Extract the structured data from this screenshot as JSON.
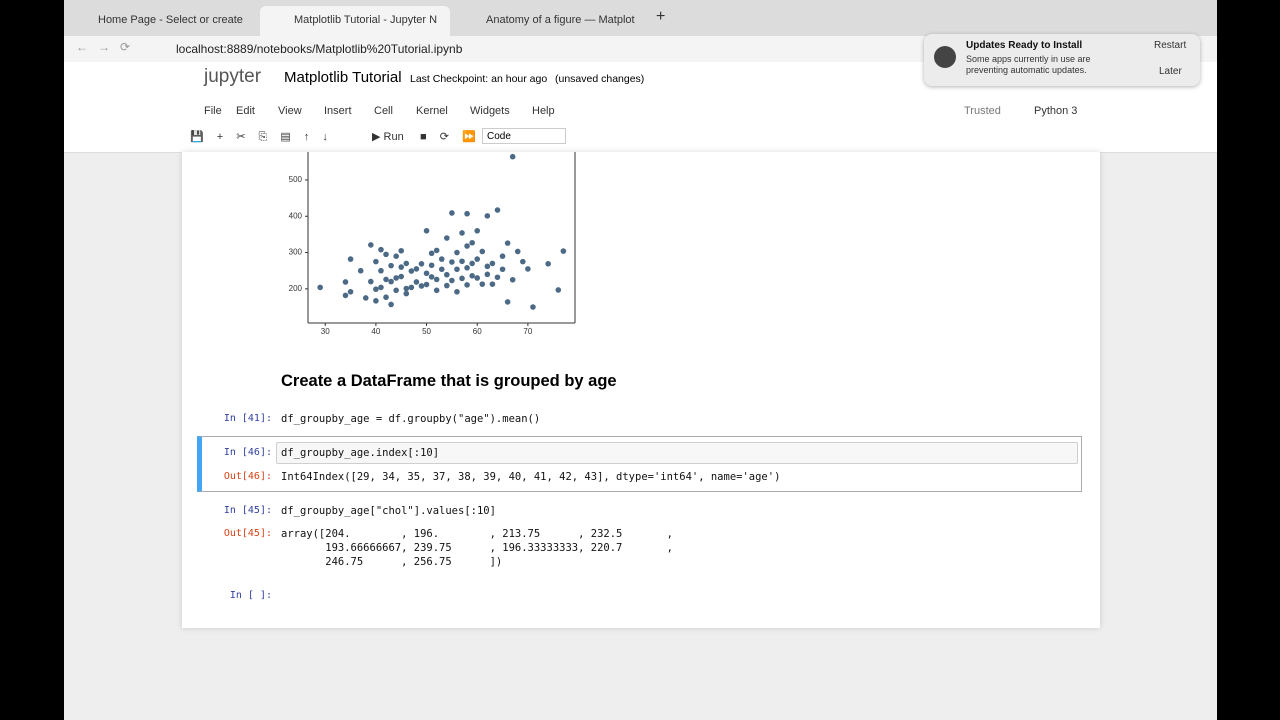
{
  "browser": {
    "tabs": [
      "Home Page - Select or create",
      "Matplotlib Tutorial - Jupyter N",
      "Anatomy of a figure — Matplot"
    ],
    "url": "localhost:8889/notebooks/Matplotlib%20Tutorial.ipynb"
  },
  "notification": {
    "title": "Updates Ready to Install",
    "body": [
      "Some apps currently in use are",
      "preventing automatic updates."
    ],
    "buttons": [
      "Restart",
      "Later"
    ]
  },
  "notebook": {
    "logo": "jupyter",
    "name": "Matplotlib Tutorial",
    "checkpoint": "Last Checkpoint: an hour ago",
    "status": "(unsaved changes)",
    "menu": [
      "File",
      "Edit",
      "View",
      "Insert",
      "Cell",
      "Kernel",
      "Widgets",
      "Help"
    ],
    "trusted": "Trusted",
    "kernel": "Python 3",
    "run": "Run",
    "cell_type": "Code",
    "heading": "Create a DataFrame that is grouped by age"
  },
  "cells": [
    {
      "prompt": "In [41]:",
      "code": "df_groupby_age = df.groupby(\"age\").mean()"
    },
    {
      "prompt": "In [46]:",
      "code": "df_groupby_age.index[:10]",
      "out_prompt": "Out[46]:",
      "output": [
        "Int64Index([29, 34, 35, 37, 38, 39, 40, 41, 42, 43], dtype='int64', name='age')"
      ]
    },
    {
      "prompt": "In [45]:",
      "code": "df_groupby_age[\"chol\"].values[:10]",
      "out_prompt": "Out[45]:",
      "output": [
        "array([204.        , 196.        , 213.75      , 232.5       ,",
        "       193.66666667, 239.75      , 196.33333333, 220.7       ,",
        "       246.75      , 256.75      ])"
      ]
    },
    {
      "prompt": "In [ ]:"
    }
  ],
  "chart_data": {
    "type": "scatter",
    "color": "#4c6a86",
    "x": [
      29,
      34,
      34,
      35,
      35,
      37,
      38,
      39,
      39,
      40,
      40,
      40,
      41,
      41,
      41,
      42,
      42,
      42,
      43,
      43,
      43,
      44,
      44,
      44,
      45,
      45,
      45,
      46,
      46,
      46,
      47,
      47,
      48,
      48,
      49,
      49,
      50,
      50,
      50,
      51,
      51,
      51,
      52,
      52,
      52,
      53,
      53,
      54,
      54,
      54,
      55,
      55,
      55,
      56,
      56,
      56,
      57,
      57,
      57,
      58,
      58,
      58,
      58,
      59,
      59,
      59,
      60,
      60,
      60,
      61,
      61,
      62,
      62,
      62,
      63,
      63,
      64,
      64,
      65,
      65,
      66,
      66,
      67,
      67,
      68,
      69,
      70,
      71,
      74,
      76,
      77
    ],
    "y": [
      204,
      182,
      219,
      192,
      282,
      250,
      175,
      220,
      321,
      199,
      275,
      167,
      250,
      204,
      308,
      226,
      295,
      177,
      220,
      264,
      157,
      230,
      290,
      196,
      260,
      234,
      305,
      201,
      270,
      187,
      249,
      204,
      255,
      219,
      269,
      208,
      243,
      360,
      212,
      233,
      298,
      265,
      226,
      306,
      196,
      282,
      254,
      209,
      340,
      239,
      274,
      223,
      409,
      254,
      300,
      192,
      276,
      354,
      229,
      318,
      258,
      211,
      407,
      270,
      236,
      327,
      282,
      230,
      360,
      213,
      303,
      262,
      401,
      240,
      213,
      270,
      417,
      232,
      254,
      290,
      164,
      326,
      225,
      564,
      303,
      275,
      255,
      150,
      269,
      197,
      304
    ],
    "xlim": [
      26.6,
      79.3
    ],
    "ylim": [
      106,
      610
    ],
    "xticks": [
      30,
      40,
      50,
      60,
      70
    ],
    "yticks": [
      200,
      300,
      400,
      500
    ]
  }
}
